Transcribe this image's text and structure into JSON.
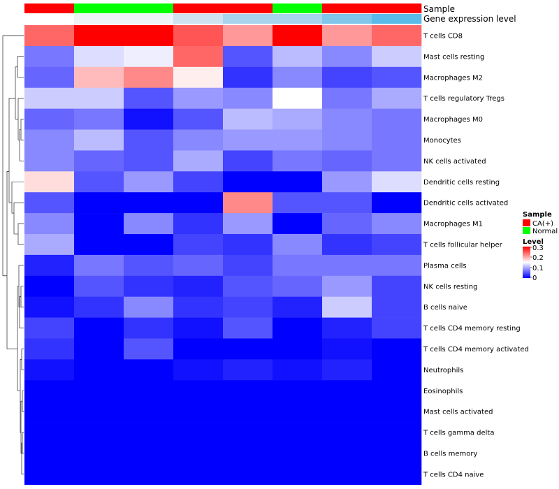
{
  "chart_data": {
    "type": "heatmap",
    "rows": [
      "T cells CD8",
      "Mast cells resting",
      "Macrophages M2",
      "T cells regulatory  Tregs",
      "Macrophages M0",
      "Monocytes",
      "NK cells activated",
      "Dendritic cells resting",
      "Dendritic cells activated",
      "Macrophages M1",
      "T cells follicular helper",
      "Plasma cells",
      "NK cells resting",
      "B cells naive",
      "T cells CD4 memory resting",
      "T cells CD4 memory activated",
      "Neutrophils",
      "Eosinophils",
      "Mast cells activated",
      "T cells gamma delta",
      "B cells memory",
      "T cells CD4 naive"
    ],
    "values": [
      [
        0.24,
        0.3,
        0.3,
        0.25,
        0.21,
        0.3,
        0.21,
        0.24
      ],
      [
        0.07,
        0.13,
        0.14,
        0.24,
        0.05,
        0.11,
        0.08,
        0.12
      ],
      [
        0.06,
        0.19,
        0.22,
        0.16,
        0.03,
        0.08,
        0.04,
        0.05
      ],
      [
        0.12,
        0.12,
        0.05,
        0.09,
        0.08,
        0.15,
        0.07,
        0.1
      ],
      [
        0.06,
        0.07,
        0.01,
        0.05,
        0.11,
        0.1,
        0.08,
        0.07
      ],
      [
        0.08,
        0.11,
        0.05,
        0.08,
        0.09,
        0.09,
        0.08,
        0.07
      ],
      [
        0.08,
        0.06,
        0.05,
        0.1,
        0.04,
        0.07,
        0.06,
        0.07
      ],
      [
        0.17,
        0.05,
        0.09,
        0.04,
        0.0,
        0.0,
        0.09,
        0.13
      ],
      [
        0.05,
        0.0,
        0.0,
        0.0,
        0.22,
        0.05,
        0.05,
        0.0
      ],
      [
        0.08,
        0.0,
        0.08,
        0.03,
        0.09,
        0.0,
        0.06,
        0.08
      ],
      [
        0.1,
        0.0,
        0.0,
        0.04,
        0.03,
        0.08,
        0.03,
        0.04
      ],
      [
        0.02,
        0.07,
        0.05,
        0.06,
        0.04,
        0.07,
        0.07,
        0.07
      ],
      [
        0.0,
        0.05,
        0.03,
        0.02,
        0.05,
        0.06,
        0.09,
        0.04
      ],
      [
        0.01,
        0.03,
        0.08,
        0.03,
        0.04,
        0.02,
        0.12,
        0.04
      ],
      [
        0.04,
        0.0,
        0.03,
        0.01,
        0.05,
        0.0,
        0.02,
        0.04
      ],
      [
        0.03,
        0.0,
        0.05,
        0.0,
        0.0,
        0.0,
        0.01,
        0.0
      ],
      [
        0.01,
        0.0,
        0.0,
        0.01,
        0.02,
        0.01,
        0.02,
        0.0
      ],
      [
        0.0,
        0.0,
        0.0,
        0.0,
        0.0,
        0.0,
        0.0,
        0.0
      ],
      [
        0.0,
        0.0,
        0.0,
        0.0,
        0.0,
        0.0,
        0.0,
        0.0
      ],
      [
        0.0,
        0.0,
        0.0,
        0.0,
        0.0,
        0.0,
        0.0,
        0.0
      ],
      [
        0.0,
        0.0,
        0.0,
        0.0,
        0.0,
        0.0,
        0.0,
        0.0
      ],
      [
        0.0,
        0.0,
        0.0,
        0.0,
        0.0,
        0.0,
        0.0,
        0.0
      ]
    ],
    "column_annotations": {
      "sample": {
        "label": "Sample",
        "values": [
          "CA(+)",
          "Normal",
          "Normal",
          "CA(+)",
          "CA(+)",
          "Normal",
          "CA(+)",
          "CA(+)"
        ]
      },
      "gene_expression": {
        "label": "Gene expression level",
        "values": [
          "#ffffff",
          "#eef3f8",
          "#eef3f8",
          "#cfe2f0",
          "#a9d4ee",
          "#a9d4ee",
          "#7fc6ea",
          "#5bbbe8"
        ]
      }
    },
    "legend": {
      "sample_title": "Sample",
      "sample_entries": [
        {
          "label": "CA(+)",
          "color": "#ff0000"
        },
        {
          "label": "Normal",
          "color": "#00ff00"
        }
      ],
      "level_title": "Level",
      "level_ticks": [
        "0.3",
        "0.2",
        "0.1",
        "0"
      ],
      "level_range": [
        0,
        0.3
      ]
    },
    "color_scale": {
      "low": "#0000ff",
      "mid": "#ffffff",
      "high": "#ff0000",
      "mid_value": 0.15
    }
  }
}
